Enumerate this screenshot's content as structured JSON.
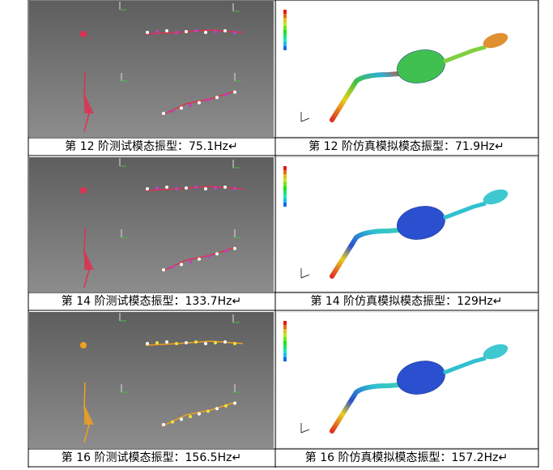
{
  "table": {
    "rows": [
      [
        "第 12 阶测试模态振型：75.1Hz↵",
        "第 12 阶仿真模拟模态振型：71.9Hz↵"
      ],
      [
        "第 14 阶测试模态振型：133.7Hz↵",
        "第 14 阶仿真模拟模态振型：129Hz↵"
      ],
      [
        "第 16 阶测试模态振型：156.5Hz↵",
        "第 16 阶仿真模拟模态振型：157.2Hz↵"
      ]
    ]
  }
}
